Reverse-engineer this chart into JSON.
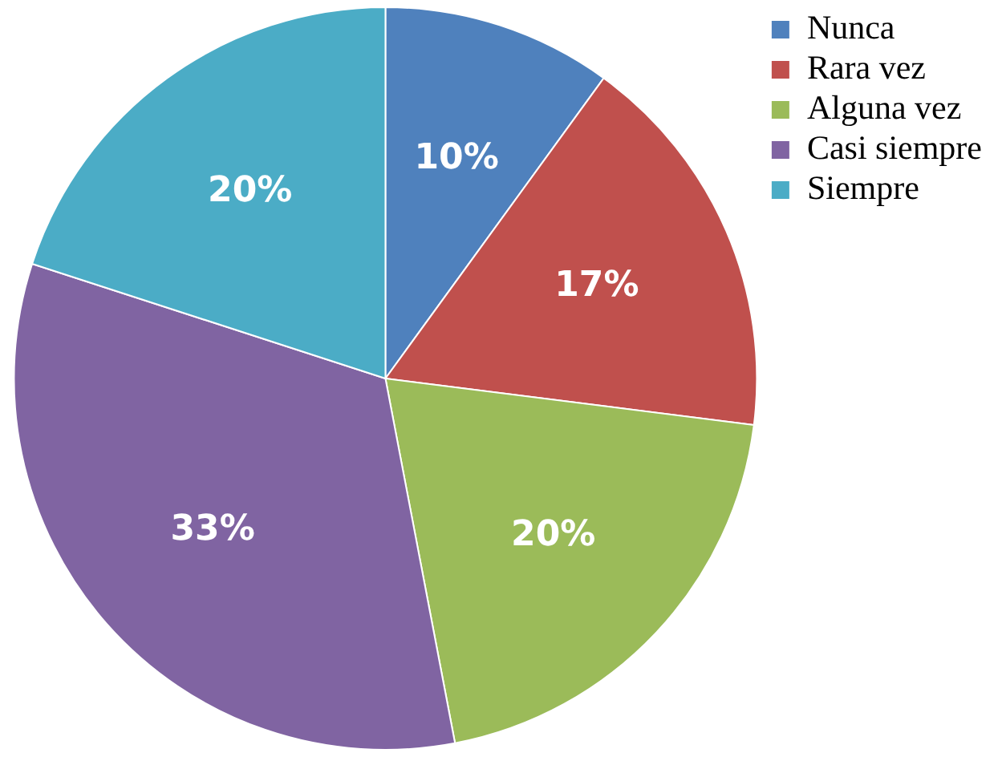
{
  "chart_data": {
    "type": "pie",
    "categories": [
      "Nunca",
      "Rara vez",
      "Alguna vez",
      "Casi siempre",
      "Siempre"
    ],
    "values": [
      10,
      17,
      20,
      33,
      20
    ],
    "colors": [
      "#4f81bd",
      "#c0504d",
      "#9bbb59",
      "#8064a2",
      "#4bacc6"
    ],
    "value_labels": [
      "10%",
      "17%",
      "20%",
      "33%",
      "20%"
    ],
    "legend": "top right"
  }
}
